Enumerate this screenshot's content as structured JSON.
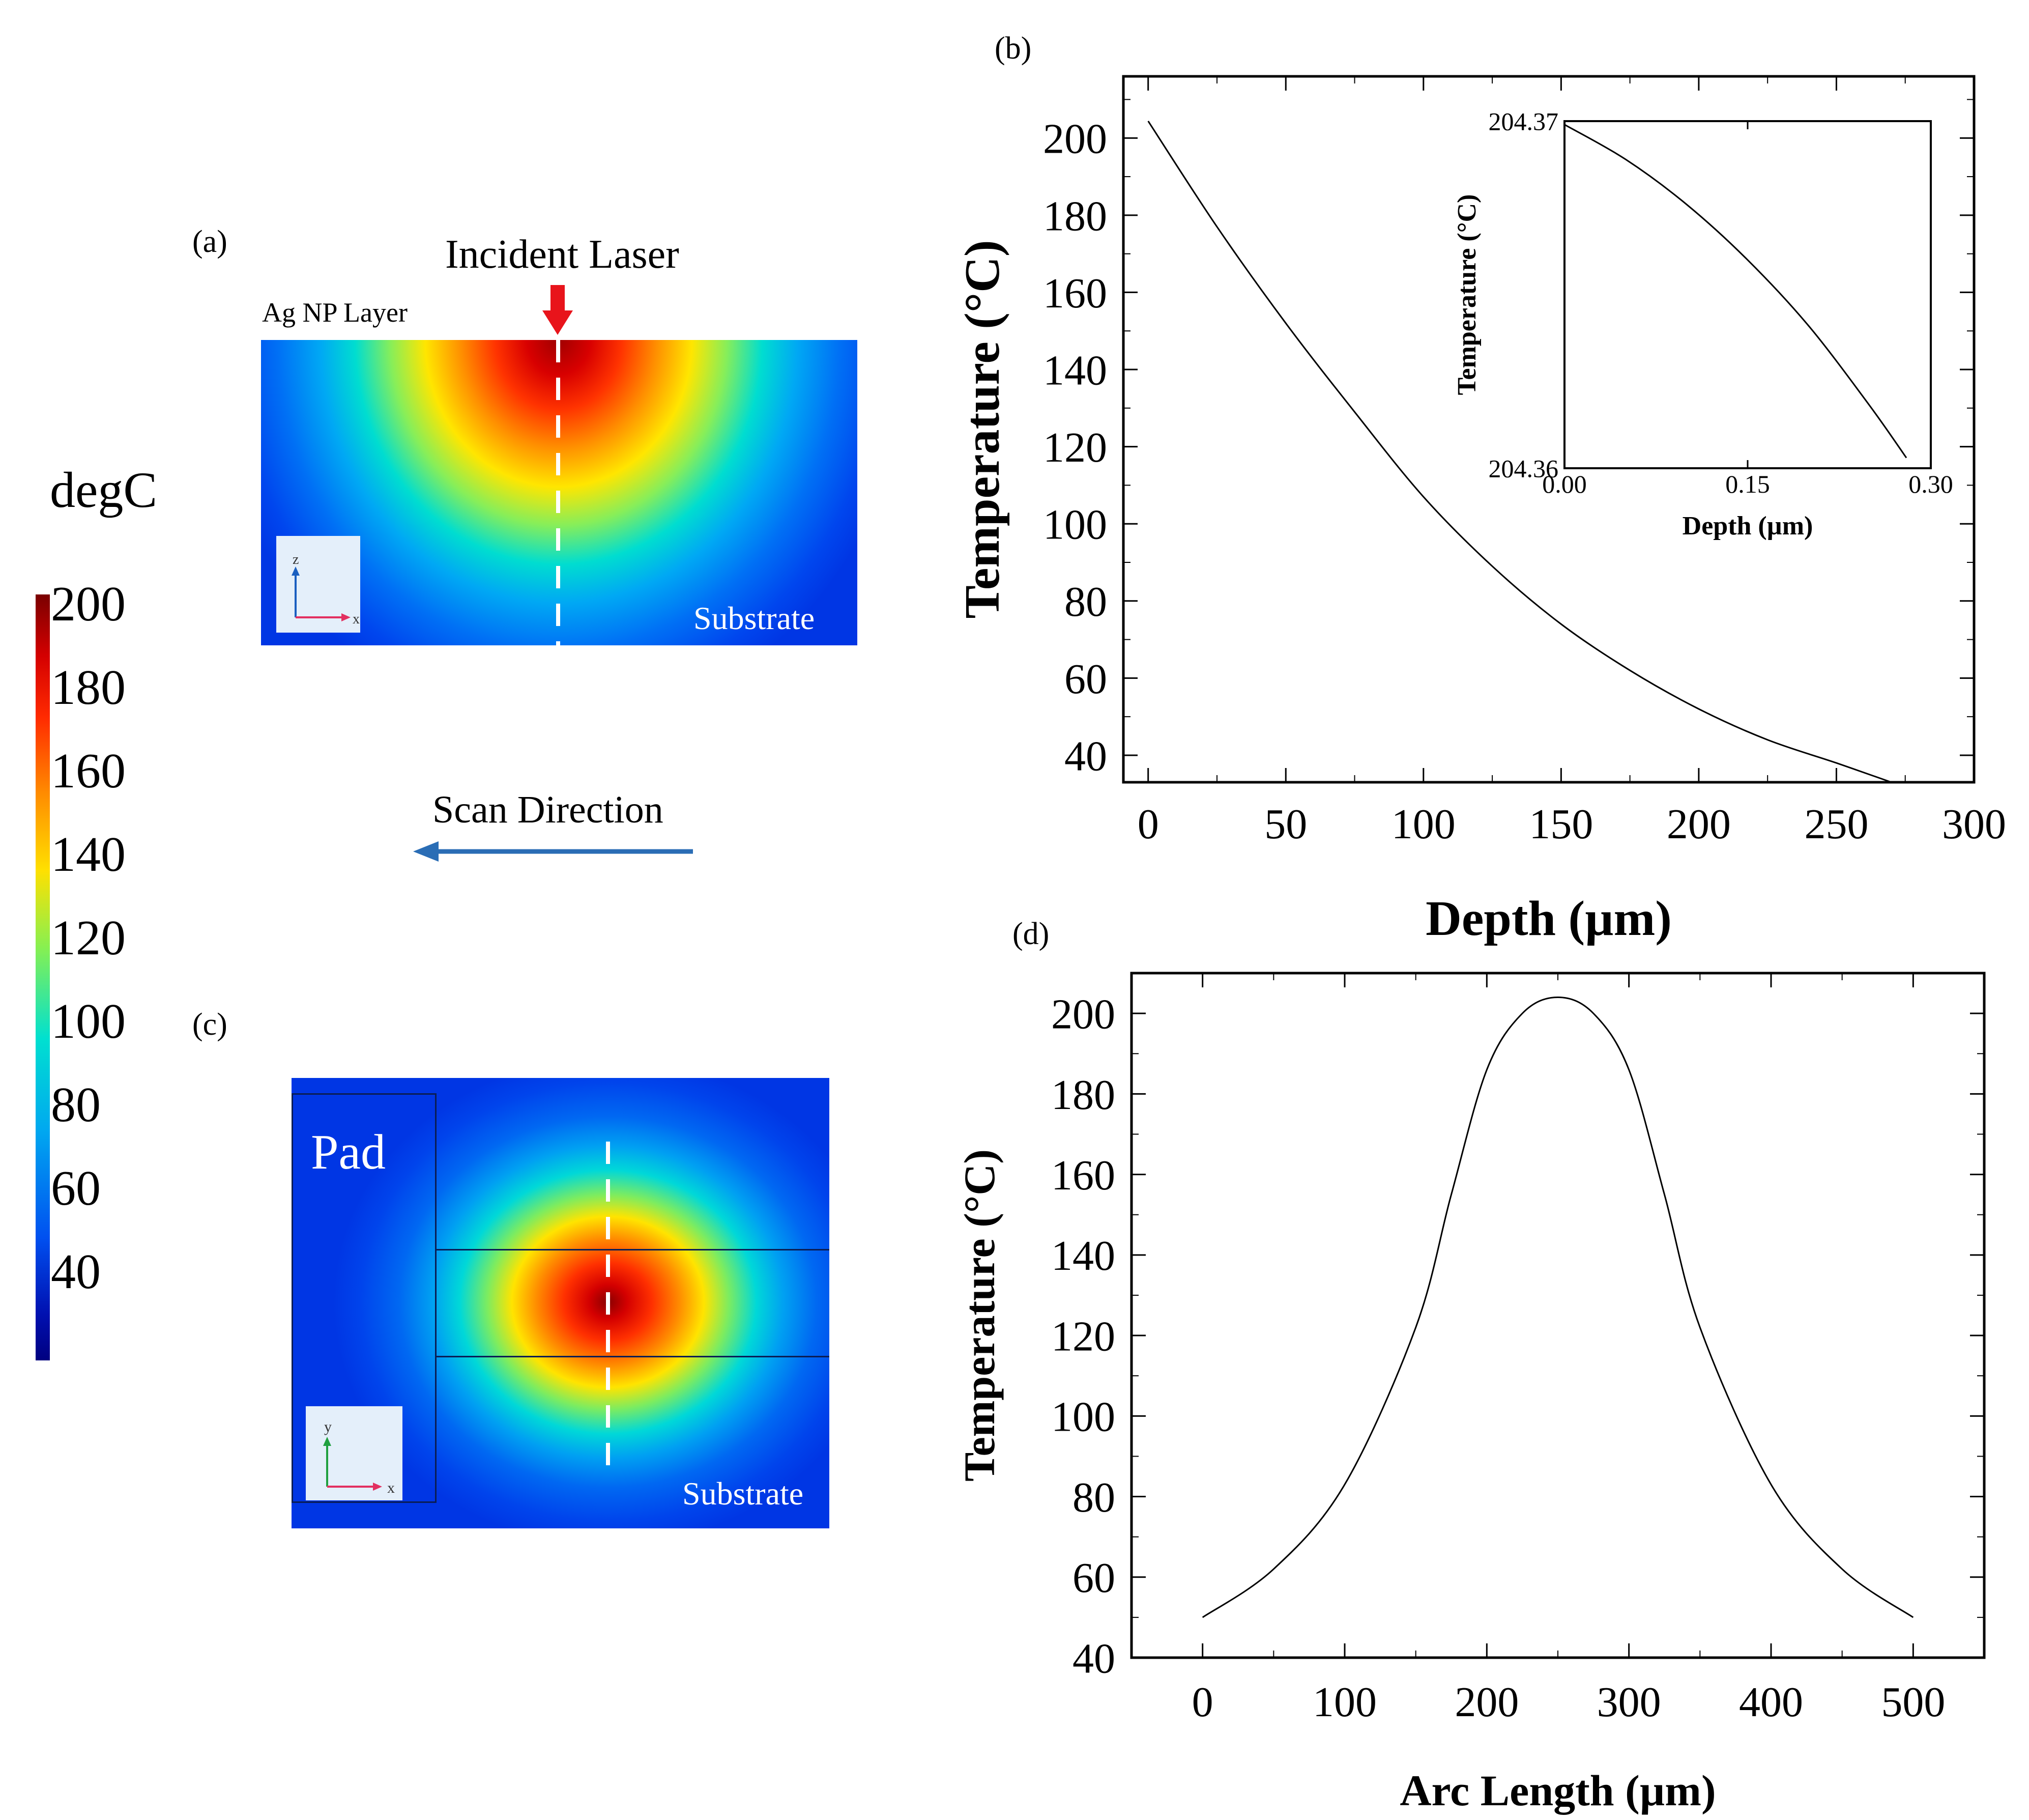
{
  "colorbar": {
    "unit": "degC",
    "ticks": [
      "200",
      "180",
      "160",
      "140",
      "120",
      "100",
      "80",
      "60",
      "40"
    ]
  },
  "panel_a": {
    "label": "(a)",
    "incident_laser": "Incident Laser",
    "layer_label": "Ag NP Layer",
    "substrate_label": "Substrate",
    "axis_z": "z",
    "axis_x": "x"
  },
  "scan_direction": "Scan Direction",
  "panel_c": {
    "label": "(c)",
    "pad_label": "Pad",
    "substrate_label": "Substrate",
    "axis_y": "y",
    "axis_x": "x"
  },
  "chart_data": [
    {
      "id": "b",
      "label": "(b)",
      "type": "line",
      "xlabel": "Depth (µm)",
      "ylabel": "Temperature (°C)",
      "xlim": [
        -9,
        300
      ],
      "ylim": [
        33,
        216
      ],
      "xticks": [
        0,
        50,
        100,
        150,
        200,
        250,
        300
      ],
      "yticks": [
        40,
        60,
        80,
        100,
        120,
        140,
        160,
        180,
        200
      ],
      "x": [
        0,
        25,
        50,
        75,
        100,
        125,
        150,
        175,
        200,
        225,
        250,
        270
      ],
      "y": [
        204.4,
        177,
        152,
        129,
        107,
        89,
        74,
        62,
        52,
        44,
        38,
        33
      ],
      "inset": {
        "type": "line",
        "xlabel": "Depth (µm)",
        "ylabel": "Temperature (°C)",
        "xlim": [
          0,
          0.3
        ],
        "ylim": [
          204.36,
          204.37
        ],
        "xticks": [
          "0.00",
          "0.15",
          "0.30"
        ],
        "yticks": [
          "204.36",
          "204.37"
        ],
        "x": [
          0.0,
          0.05,
          0.1,
          0.15,
          0.2,
          0.25,
          0.28
        ],
        "y": [
          204.3699,
          204.3689,
          204.3676,
          204.366,
          204.3641,
          204.3618,
          204.3603
        ]
      }
    },
    {
      "id": "d",
      "label": "(d)",
      "type": "line",
      "xlabel": "Arc Length (µm)",
      "ylabel": "Temperature (°C)",
      "xlim": [
        -50,
        550
      ],
      "ylim": [
        40,
        210
      ],
      "xticks": [
        0,
        100,
        200,
        300,
        400,
        500
      ],
      "yticks": [
        40,
        60,
        80,
        100,
        120,
        140,
        160,
        180,
        200
      ],
      "x": [
        0,
        50,
        100,
        150,
        175,
        200,
        225,
        250,
        275,
        300,
        325,
        350,
        400,
        450,
        500
      ],
      "y": [
        50,
        62,
        83,
        122,
        155,
        186,
        200,
        204,
        200,
        186,
        155,
        122,
        83,
        62,
        50
      ]
    }
  ],
  "colors": {
    "line": "#000000",
    "arrow_red": "#e8141b",
    "scan_arrow": "#2a6db5"
  }
}
